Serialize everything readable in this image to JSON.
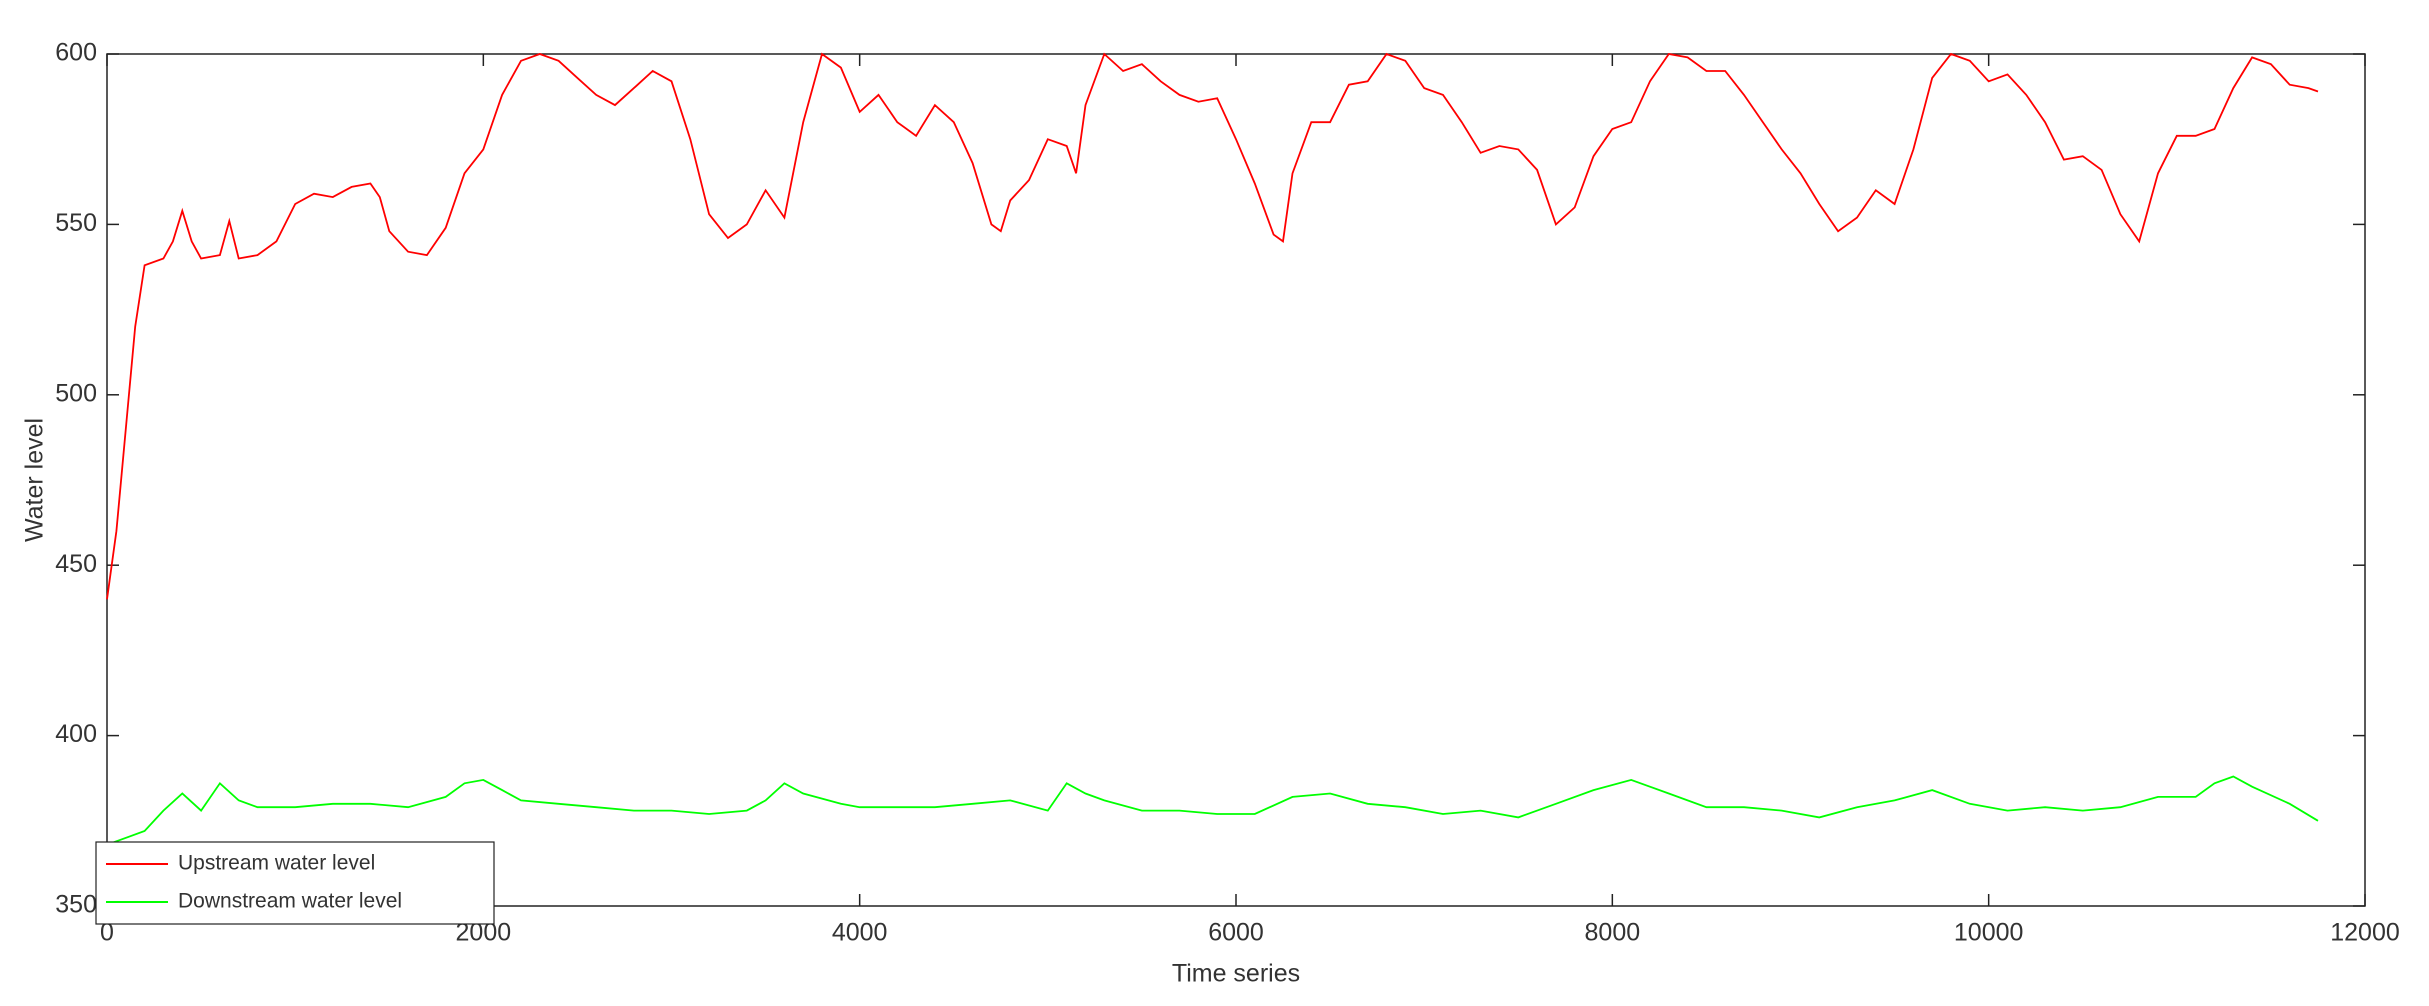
{
  "chart_data": {
    "type": "line",
    "xlabel": "Time series",
    "ylabel": "Water level",
    "xlim": [
      0,
      12000
    ],
    "xticks": [
      0,
      2000,
      4000,
      6000,
      8000,
      10000,
      12000
    ],
    "ylim": [
      350,
      600
    ],
    "yticks": [
      350,
      400,
      450,
      500,
      550,
      600
    ],
    "grid": false,
    "legend": "lower left",
    "series": [
      {
        "name": "Upstream water level",
        "color": "#ff0000",
        "x": [
          0,
          50,
          100,
          150,
          200,
          300,
          350,
          400,
          450,
          500,
          600,
          650,
          700,
          800,
          900,
          1000,
          1100,
          1200,
          1300,
          1400,
          1450,
          1500,
          1600,
          1700,
          1800,
          1900,
          2000,
          2100,
          2200,
          2300,
          2400,
          2500,
          2600,
          2700,
          2800,
          2900,
          3000,
          3100,
          3200,
          3300,
          3400,
          3500,
          3600,
          3700,
          3800,
          3900,
          4000,
          4100,
          4200,
          4300,
          4400,
          4500,
          4600,
          4700,
          4750,
          4800,
          4900,
          5000,
          5100,
          5150,
          5200,
          5300,
          5400,
          5500,
          5600,
          5700,
          5800,
          5900,
          6000,
          6100,
          6200,
          6250,
          6300,
          6400,
          6500,
          6600,
          6700,
          6800,
          6900,
          7000,
          7100,
          7200,
          7300,
          7400,
          7500,
          7600,
          7700,
          7800,
          7900,
          8000,
          8100,
          8200,
          8300,
          8400,
          8500,
          8600,
          8700,
          8800,
          8900,
          9000,
          9100,
          9200,
          9300,
          9400,
          9500,
          9600,
          9700,
          9800,
          9900,
          10000,
          10100,
          10200,
          10300,
          10400,
          10500,
          10600,
          10700,
          10800,
          10900,
          11000,
          11100,
          11200,
          11300,
          11400,
          11500,
          11600,
          11700,
          11750
        ],
        "values": [
          440,
          460,
          490,
          520,
          538,
          540,
          545,
          554,
          545,
          540,
          541,
          551,
          540,
          541,
          545,
          556,
          559,
          558,
          561,
          562,
          558,
          548,
          542,
          541,
          549,
          565,
          572,
          588,
          598,
          600,
          598,
          593,
          588,
          585,
          590,
          595,
          592,
          575,
          553,
          546,
          550,
          560,
          552,
          580,
          600,
          596,
          583,
          588,
          580,
          576,
          585,
          580,
          568,
          550,
          548,
          557,
          563,
          575,
          573,
          565,
          585,
          600,
          595,
          597,
          592,
          588,
          586,
          587,
          575,
          562,
          547,
          545,
          565,
          580,
          580,
          591,
          592,
          600,
          598,
          590,
          588,
          580,
          571,
          573,
          572,
          566,
          550,
          555,
          570,
          578,
          580,
          592,
          600,
          599,
          595,
          595,
          588,
          580,
          572,
          565,
          556,
          548,
          552,
          560,
          556,
          572,
          593,
          600,
          598,
          592,
          594,
          588,
          580,
          569,
          570,
          566,
          553,
          545,
          565,
          576,
          576,
          578,
          590,
          599,
          597,
          591,
          590,
          589
        ]
      },
      {
        "name": "Downstream water level",
        "color": "#00ff00",
        "x": [
          0,
          200,
          300,
          400,
          500,
          600,
          700,
          800,
          1000,
          1200,
          1400,
          1600,
          1800,
          1900,
          2000,
          2100,
          2200,
          2400,
          2600,
          2800,
          3000,
          3200,
          3400,
          3500,
          3600,
          3700,
          3900,
          4000,
          4200,
          4400,
          4600,
          4800,
          5000,
          5100,
          5200,
          5300,
          5500,
          5700,
          5900,
          6100,
          6300,
          6500,
          6700,
          6900,
          7100,
          7300,
          7500,
          7700,
          7900,
          8100,
          8300,
          8500,
          8700,
          8900,
          9100,
          9300,
          9500,
          9700,
          9900,
          10100,
          10300,
          10500,
          10700,
          10900,
          11100,
          11200,
          11300,
          11400,
          11600,
          11750
        ],
        "values": [
          368,
          372,
          378,
          383,
          378,
          386,
          381,
          379,
          379,
          380,
          380,
          379,
          382,
          386,
          387,
          384,
          381,
          380,
          379,
          378,
          378,
          377,
          378,
          381,
          386,
          383,
          380,
          379,
          379,
          379,
          380,
          381,
          378,
          386,
          383,
          381,
          378,
          378,
          377,
          377,
          382,
          383,
          380,
          379,
          377,
          378,
          376,
          380,
          384,
          387,
          383,
          379,
          379,
          378,
          376,
          379,
          381,
          384,
          380,
          378,
          379,
          378,
          379,
          382,
          382,
          386,
          388,
          385,
          380,
          375
        ]
      }
    ]
  }
}
